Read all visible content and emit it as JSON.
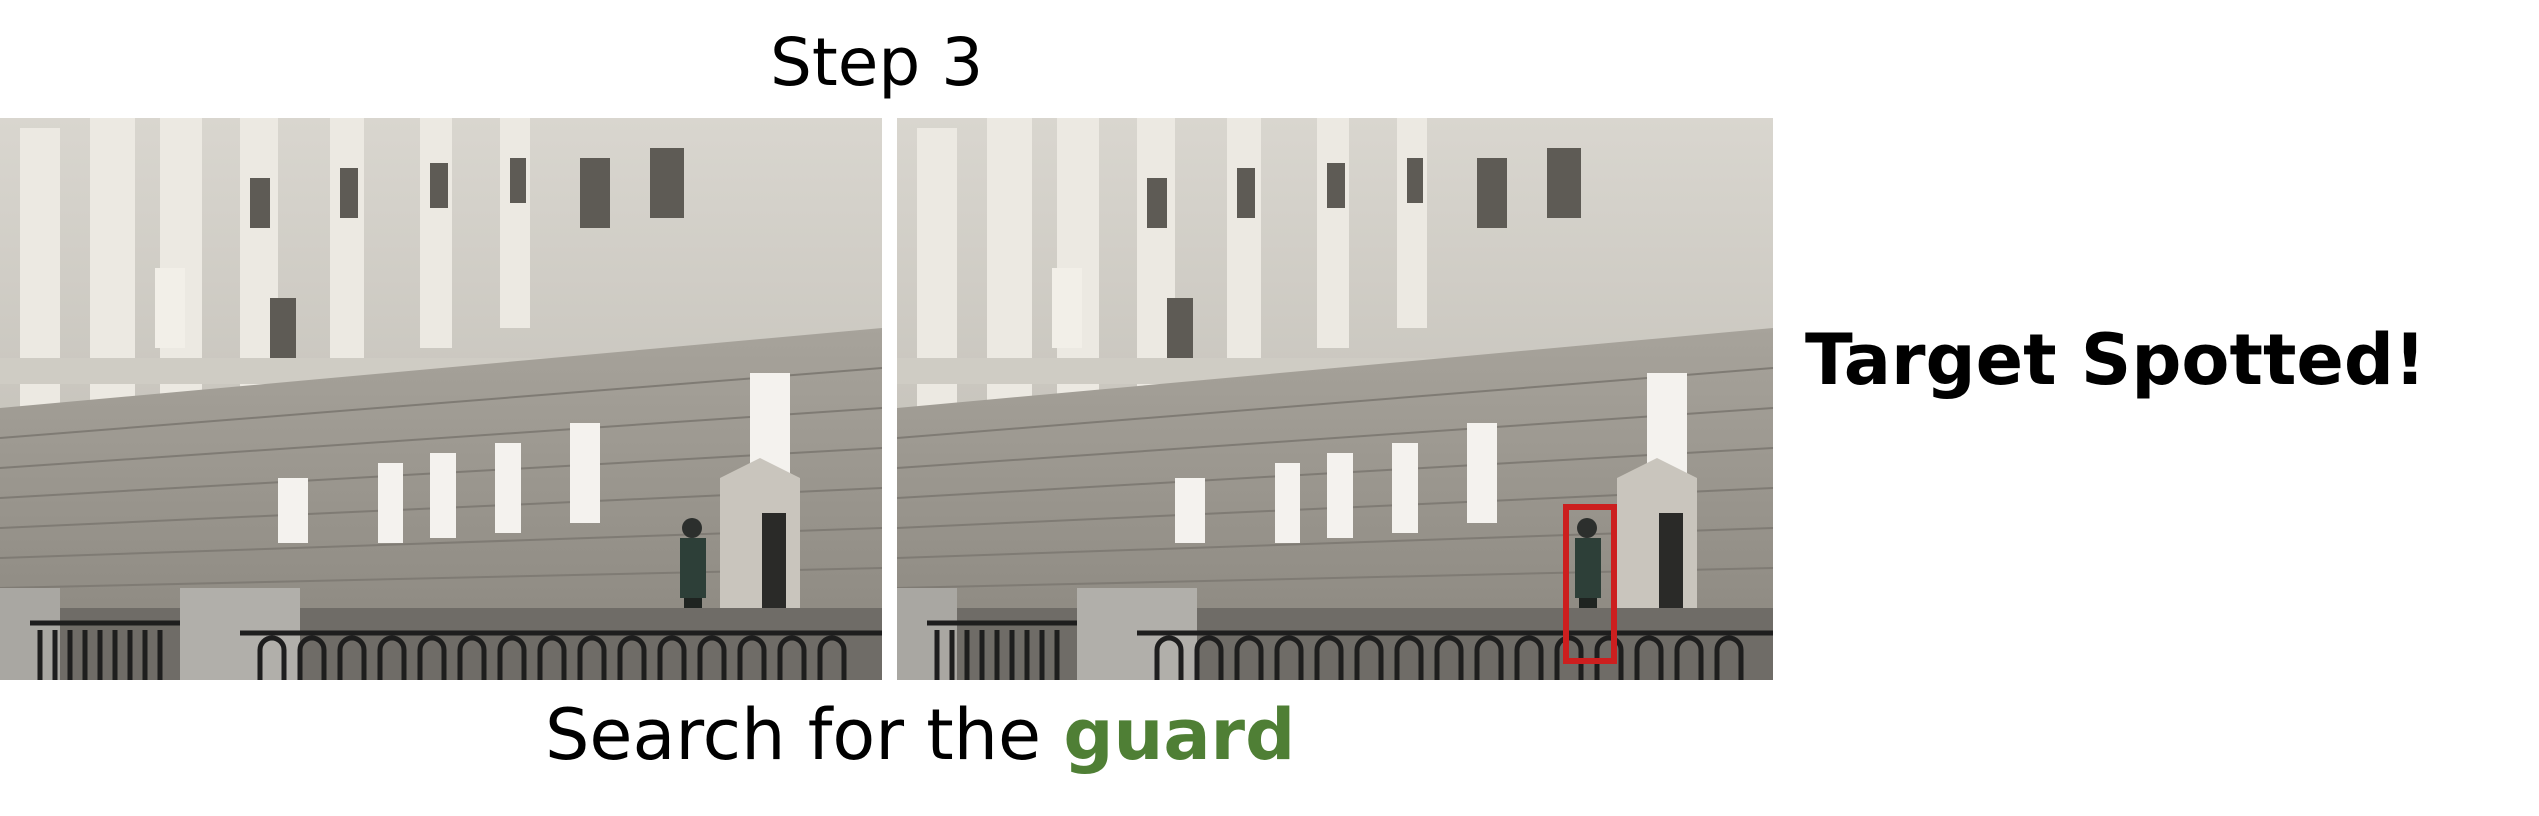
{
  "header": {
    "title": "Step 3"
  },
  "caption": {
    "prefix": "Search for the ",
    "keyword": "guard"
  },
  "status": {
    "text": "Target Spotted!"
  },
  "colors": {
    "keyword": "#4f7f35",
    "detection_box": "#cc1f1f",
    "background": "#ffffff"
  }
}
